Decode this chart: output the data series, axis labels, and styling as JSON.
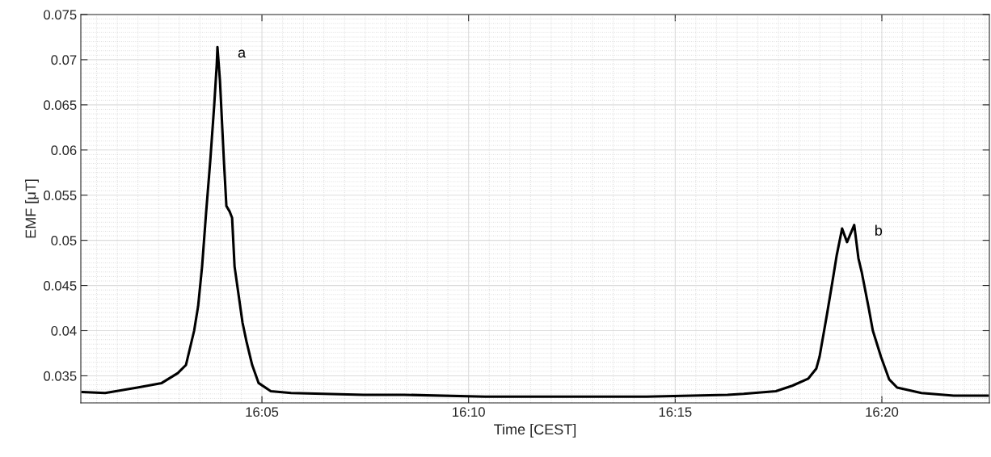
{
  "chart_data": {
    "type": "line",
    "xlabel": "Time [CEST]",
    "ylabel": "EMF [μT]",
    "x": [
      16.011,
      16.0201,
      16.0331,
      16.0429,
      16.0494,
      16.0527,
      16.056,
      16.0576,
      16.0592,
      16.0608,
      16.0625,
      16.0641,
      16.0651,
      16.0654,
      16.0664,
      16.068,
      16.069,
      16.0703,
      16.0713,
      16.0723,
      16.0739,
      16.0755,
      16.0771,
      16.0794,
      16.082,
      16.0869,
      16.0951,
      16.1081,
      16.1244,
      16.1407,
      16.1733,
      16.2059,
      16.2385,
      16.2711,
      16.2776,
      16.2906,
      16.2972,
      16.3037,
      16.3069,
      16.3082,
      16.3112,
      16.3134,
      16.3151,
      16.3173,
      16.3193,
      16.3222,
      16.3239,
      16.3252,
      16.3281,
      16.3297,
      16.333,
      16.3363,
      16.3395,
      16.3493,
      16.3623,
      16.376
    ],
    "series": [
      {
        "color": "#000000",
        "values": [
          0.0332,
          0.0331,
          0.0337,
          0.0342,
          0.0353,
          0.0362,
          0.04,
          0.0427,
          0.0471,
          0.053,
          0.0588,
          0.065,
          0.0694,
          0.0714,
          0.0677,
          0.0588,
          0.0538,
          0.0532,
          0.0525,
          0.0471,
          0.044,
          0.0409,
          0.0388,
          0.0362,
          0.0342,
          0.0333,
          0.0331,
          0.033,
          0.0329,
          0.0329,
          0.0327,
          0.0327,
          0.0327,
          0.0329,
          0.033,
          0.0333,
          0.0339,
          0.0347,
          0.0358,
          0.0371,
          0.0418,
          0.0454,
          0.0483,
          0.0513,
          0.0498,
          0.0517,
          0.048,
          0.0465,
          0.0424,
          0.04,
          0.0371,
          0.0346,
          0.0337,
          0.0331,
          0.0328,
          0.0328
        ]
      }
    ],
    "xlim": [
      16.0103,
      16.3767
    ],
    "xticks": [
      {
        "value": 16.083333,
        "label": "16:05"
      },
      {
        "value": 16.166667,
        "label": "16:10"
      },
      {
        "value": 16.25,
        "label": "16:15"
      },
      {
        "value": 16.333333,
        "label": "16:20"
      }
    ],
    "ylim": [
      0.032,
      0.075
    ],
    "yticks": [
      0.035,
      0.04,
      0.045,
      0.05,
      0.055,
      0.06,
      0.065,
      0.07,
      0.075
    ],
    "grid": true,
    "line_style": "solid",
    "annotations": [
      {
        "text": "a",
        "x": 16.0654,
        "y": 0.0714
      },
      {
        "text": "b",
        "x": 16.3222,
        "y": 0.0517
      }
    ]
  }
}
